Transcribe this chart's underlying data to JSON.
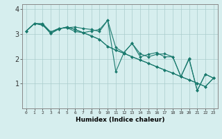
{
  "xlabel": "Humidex (Indice chaleur)",
  "bg_color": "#d6eeee",
  "line_color": "#1a7a6e",
  "grid_color": "#aacccc",
  "xlim": [
    -0.5,
    23.5
  ],
  "ylim": [
    0,
    4.2
  ],
  "yticks": [
    1,
    2,
    3,
    4
  ],
  "xtick_labels": [
    "0",
    "1",
    "2",
    "3",
    "4",
    "5",
    "6",
    "7",
    "8",
    "9",
    "10",
    "11",
    "12",
    "13",
    "14",
    "15",
    "16",
    "17",
    "18",
    "19",
    "20",
    "21",
    "22",
    "23"
  ],
  "lines": [
    [
      3.12,
      3.42,
      3.42,
      3.08,
      3.22,
      3.25,
      3.28,
      3.22,
      3.18,
      3.1,
      3.55,
      1.48,
      2.25,
      2.62,
      2.2,
      2.08,
      2.18,
      2.2,
      2.08,
      1.28,
      1.98,
      0.72,
      1.38,
      1.22
    ],
    [
      3.12,
      3.42,
      3.38,
      3.02,
      3.2,
      3.28,
      3.18,
      3.05,
      2.92,
      2.78,
      2.5,
      2.35,
      2.22,
      2.08,
      1.95,
      1.82,
      1.68,
      1.55,
      1.42,
      1.28,
      1.15,
      1.02,
      0.88,
      1.22
    ],
    [
      3.12,
      3.42,
      3.38,
      3.02,
      3.2,
      3.28,
      3.18,
      3.05,
      2.92,
      2.78,
      2.5,
      2.35,
      2.22,
      2.08,
      1.95,
      1.82,
      1.68,
      1.55,
      1.42,
      1.28,
      1.15,
      1.02,
      0.88,
      1.22
    ],
    [
      3.12,
      3.42,
      3.35,
      3.08,
      3.22,
      3.25,
      3.1,
      3.05,
      3.12,
      3.18,
      3.55,
      2.45,
      2.25,
      2.62,
      2.08,
      2.18,
      2.25,
      2.08,
      2.08,
      1.28,
      2.02,
      0.72,
      1.38,
      1.22
    ]
  ]
}
